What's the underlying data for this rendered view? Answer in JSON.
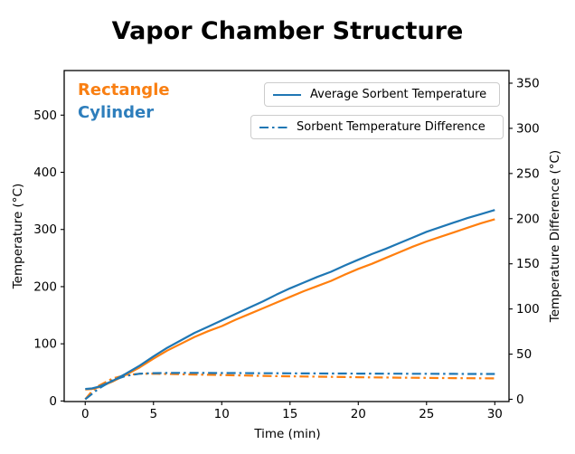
{
  "title": "Vapor Chamber Structure",
  "annotations": {
    "rectangle": {
      "label": "Rectangle",
      "color": "#f97f12"
    },
    "cylinder": {
      "label": "Cylinder",
      "color": "#2e7ebc"
    }
  },
  "legend": {
    "avg_label": "Average Sorbent Temperature",
    "diff_label": "Sorbent Temperature Difference",
    "sample_color": "#1f77b4",
    "position": "upper right"
  },
  "chart_data": {
    "type": "line",
    "title": "Vapor Chamber Structure",
    "xlabel": "Time (min)",
    "ylabel_left": "Temperature (°C)",
    "ylabel_right": "Temperature Difference (°C)",
    "grid": false,
    "xlim": [
      -1.54,
      31.04
    ],
    "ylim_left": [
      -1,
      578
    ],
    "ylim_right": [
      -2.5,
      364
    ],
    "x_ticks": [
      0,
      5,
      10,
      15,
      20,
      25,
      30
    ],
    "y_ticks_left": [
      0,
      100,
      200,
      300,
      400,
      500
    ],
    "y_ticks_right": [
      0,
      50,
      100,
      150,
      200,
      250,
      300,
      350
    ],
    "x": [
      0,
      0.5,
      1,
      2,
      3,
      4,
      5,
      6,
      7,
      8,
      9,
      10,
      11,
      12,
      13,
      14,
      15,
      16,
      17,
      18,
      19,
      20,
      21,
      22,
      23,
      24,
      25,
      26,
      27,
      28,
      29,
      30
    ],
    "series": [
      {
        "name": "Rectangle - Average Sorbent Temperature",
        "axis": "left",
        "style": "solid",
        "color": "#ff7f0e",
        "values": [
          20,
          21,
          24,
          34,
          46,
          59,
          74,
          88,
          100,
          112,
          122,
          131,
          142,
          152,
          162,
          172,
          182,
          192,
          201,
          210,
          221,
          231,
          240,
          250,
          260,
          270,
          279,
          287,
          295,
          303,
          311,
          318
        ]
      },
      {
        "name": "Rectangle - Sorbent Temperature Difference",
        "axis": "right",
        "style": "dashdot",
        "color": "#ff7f0e",
        "values": [
          0,
          9,
          15,
          23,
          27,
          28.2,
          28.3,
          28,
          27.7,
          27.4,
          27.1,
          26.8,
          26.5,
          26.2,
          25.9,
          25.6,
          25.4,
          25.2,
          25,
          24.8,
          24.6,
          24.4,
          24.2,
          24.1,
          23.9,
          23.8,
          23.7,
          23.5,
          23.4,
          23.3,
          23.2,
          23.1
        ]
      },
      {
        "name": "Cylinder - Average Sorbent Temperature",
        "axis": "left",
        "style": "solid",
        "color": "#1f77b4",
        "values": [
          21,
          22,
          25,
          35,
          48,
          62,
          78,
          93,
          106,
          119,
          130,
          141,
          152,
          163,
          174,
          186,
          197,
          207,
          217,
          226,
          237,
          247,
          257,
          266,
          276,
          286,
          296,
          304,
          312,
          320,
          327,
          334
        ]
      },
      {
        "name": "Cylinder - Sorbent Temperature Difference",
        "axis": "right",
        "style": "dashdot",
        "color": "#1f77b4",
        "values": [
          0,
          6,
          12,
          21,
          26,
          28.3,
          28.9,
          29.1,
          29.2,
          29.2,
          29.1,
          29,
          29,
          28.9,
          28.8,
          28.8,
          28.7,
          28.6,
          28.6,
          28.5,
          28.5,
          28.4,
          28.4,
          28.3,
          28.3,
          28.2,
          28.2,
          28.1,
          28.1,
          28,
          28,
          28
        ]
      }
    ]
  }
}
